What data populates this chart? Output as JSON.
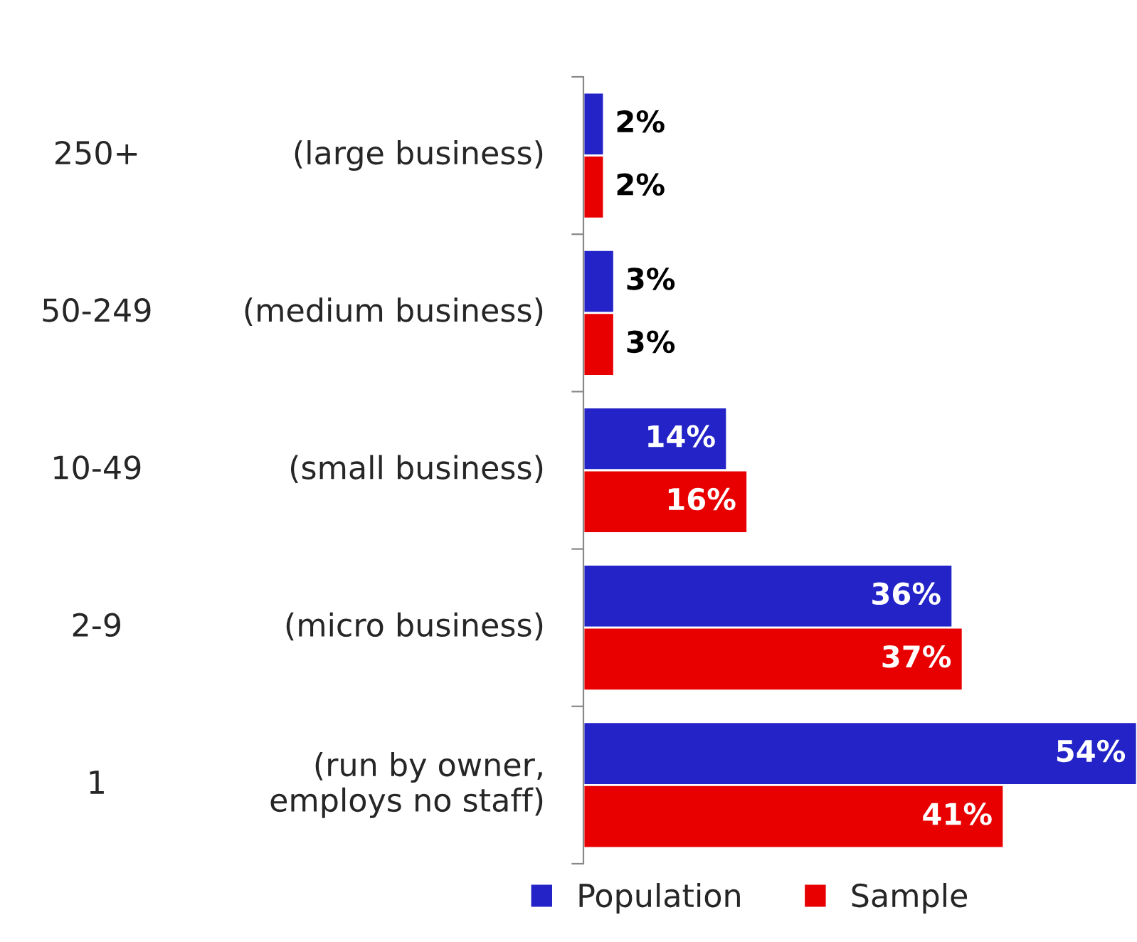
{
  "chart_data": {
    "type": "bar",
    "orientation": "horizontal",
    "categories": [
      "250+ (large business)",
      "50-249 (medium business)",
      "10-49 (small business)",
      "2-9 (micro business)",
      "1 (run by owner,\nemploys no staff)"
    ],
    "series": [
      {
        "name": "Population",
        "color": "#2323c8",
        "values": [
          2,
          3,
          14,
          36,
          54
        ],
        "value_labels": [
          "2%",
          "3%",
          "14%",
          "36%",
          "54%"
        ]
      },
      {
        "name": "Sample",
        "color": "#e80000",
        "values": [
          2,
          3,
          16,
          37,
          41
        ],
        "value_labels": [
          "2%",
          "3%",
          "16%",
          "37%",
          "41%"
        ]
      }
    ],
    "legend": "bottom",
    "grid": false
  }
}
